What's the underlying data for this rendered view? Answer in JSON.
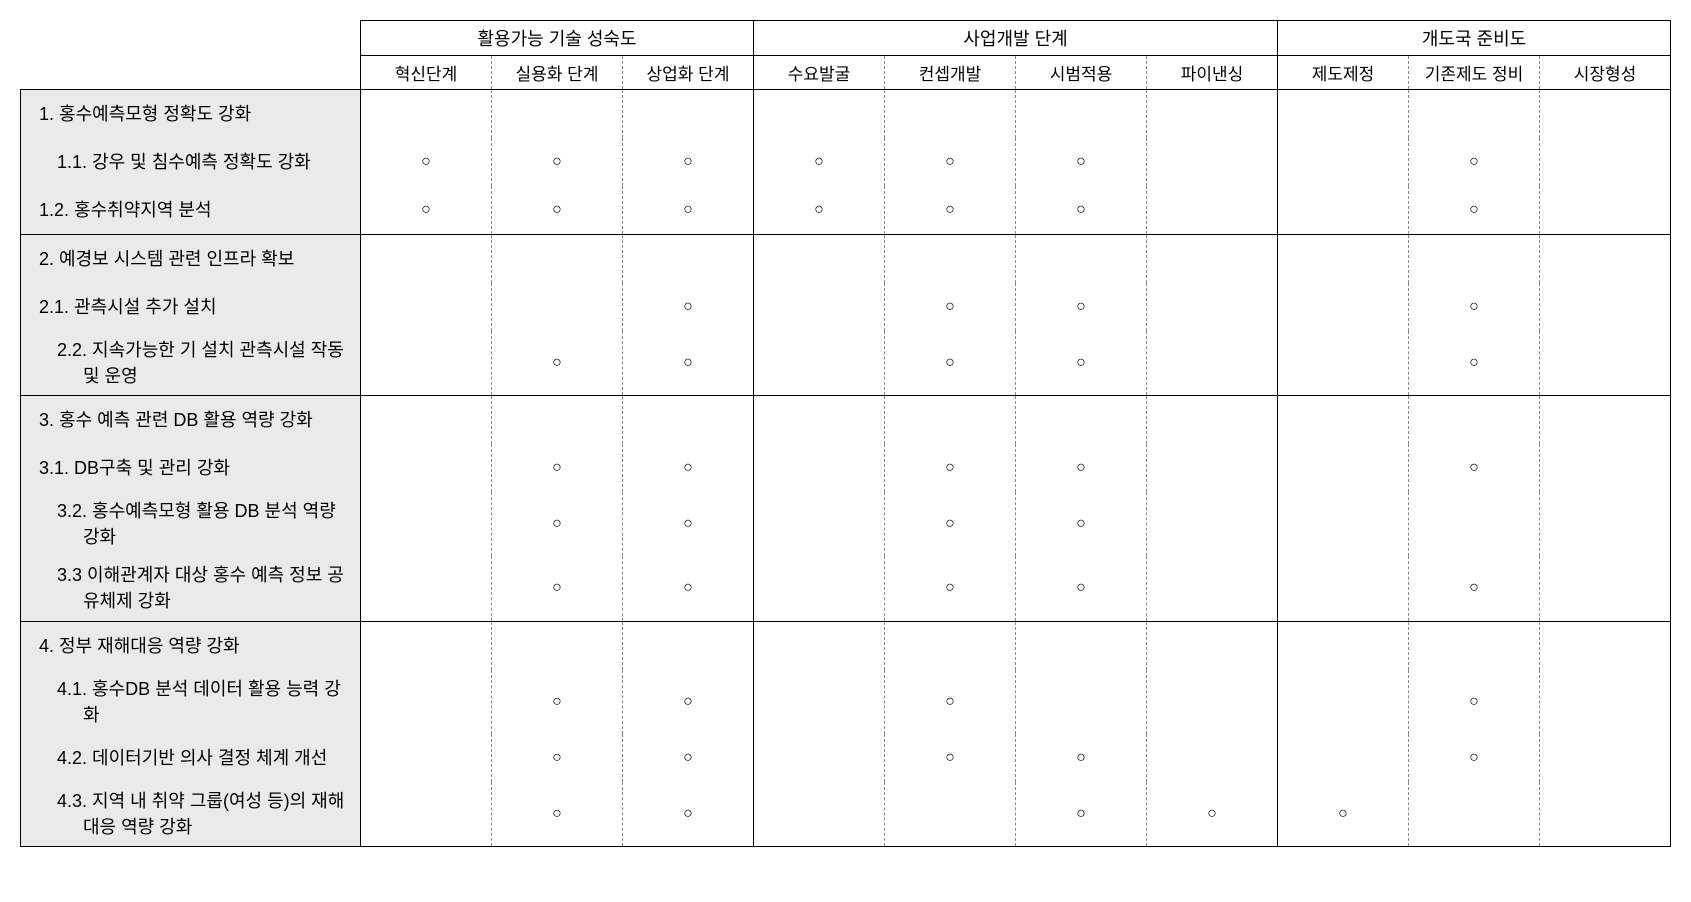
{
  "mark_glyph": "○",
  "colors": {
    "label_bg": "#eaeaea",
    "border": "#000000",
    "dash": "#888888",
    "text": "#000000",
    "bg": "#ffffff"
  },
  "header_groups": [
    {
      "label": "활용가능 기술 성숙도",
      "subs": [
        "혁신단계",
        "실용화 단계",
        "상업화 단계"
      ]
    },
    {
      "label": "사업개발 단계",
      "subs": [
        "수요발굴",
        "컨셉개발",
        "시범적용",
        "파이낸싱"
      ]
    },
    {
      "label": "개도국 준비도",
      "subs": [
        "제도제정",
        "기존제도 정비",
        "시장형성"
      ]
    }
  ],
  "rows": [
    {
      "label": "1. 홍수예측모형 정확도 강화",
      "marks": [
        0,
        0,
        0,
        0,
        0,
        0,
        0,
        0,
        0,
        0
      ],
      "head": true
    },
    {
      "label": "1.1. 강우 및 침수예측 정확도 강화",
      "marks": [
        1,
        1,
        1,
        1,
        1,
        1,
        0,
        0,
        1,
        0
      ],
      "indent": true
    },
    {
      "label": "1.2. 홍수취약지역 분석",
      "marks": [
        1,
        1,
        1,
        1,
        1,
        1,
        0,
        0,
        1,
        0
      ],
      "section_end": true
    },
    {
      "label": "2. 예경보 시스템 관련 인프라 확보",
      "marks": [
        0,
        0,
        0,
        0,
        0,
        0,
        0,
        0,
        0,
        0
      ],
      "head": true
    },
    {
      "label": "2.1. 관측시설 추가 설치",
      "marks": [
        0,
        0,
        1,
        0,
        1,
        1,
        0,
        0,
        1,
        0
      ]
    },
    {
      "label": "2.2. 지속가능한 기 설치 관측시설 작동 및 운영",
      "marks": [
        0,
        1,
        1,
        0,
        1,
        1,
        0,
        0,
        1,
        0
      ],
      "indent": true,
      "section_end": true
    },
    {
      "label": "3. 홍수 예측 관련 DB 활용 역량 강화",
      "marks": [
        0,
        0,
        0,
        0,
        0,
        0,
        0,
        0,
        0,
        0
      ],
      "head": true
    },
    {
      "label": "3.1. DB구축 및 관리 강화",
      "marks": [
        0,
        1,
        1,
        0,
        1,
        1,
        0,
        0,
        1,
        0
      ]
    },
    {
      "label": "3.2. 홍수예측모형 활용 DB 분석 역량 강화",
      "marks": [
        0,
        1,
        1,
        0,
        1,
        1,
        0,
        0,
        0,
        0
      ],
      "indent": true
    },
    {
      "label": "3.3 이해관계자 대상 홍수 예측 정보 공유체제 강화",
      "marks": [
        0,
        1,
        1,
        0,
        1,
        1,
        0,
        0,
        1,
        0
      ],
      "indent": true,
      "section_end": true
    },
    {
      "label": "4. 정부 재해대응 역량 강화",
      "marks": [
        0,
        0,
        0,
        0,
        0,
        0,
        0,
        0,
        0,
        0
      ],
      "head": true
    },
    {
      "label": "4.1. 홍수DB 분석 데이터 활용 능력 강화",
      "marks": [
        0,
        1,
        1,
        0,
        1,
        0,
        0,
        0,
        1,
        0
      ],
      "indent": true
    },
    {
      "label": "4.2. 데이터기반 의사 결정 체계 개선",
      "marks": [
        0,
        1,
        1,
        0,
        1,
        1,
        0,
        0,
        1,
        0
      ],
      "indent": true
    },
    {
      "label": "4.3. 지역 내 취약 그룹(여성 등)의 재해 대응 역량 강화",
      "marks": [
        0,
        1,
        1,
        0,
        0,
        1,
        1,
        1,
        0,
        0
      ],
      "indent": true,
      "section_end": true
    }
  ]
}
